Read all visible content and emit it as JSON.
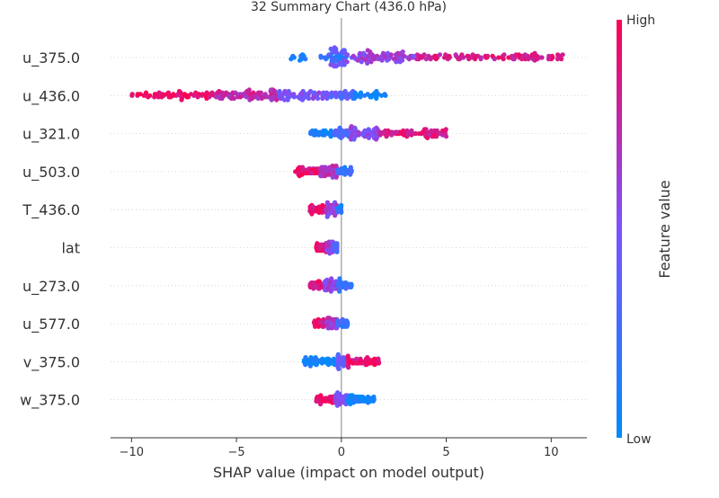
{
  "chart_data": {
    "type": "scatter",
    "subtype": "shap-beeswarm-summary",
    "title": "32 Summary Chart (436.0 hPa)",
    "xlabel": "SHAP value (impact on model output)",
    "ylabel": "",
    "xlim": [
      -11,
      11.7
    ],
    "xticks": [
      -10,
      -5,
      0,
      5,
      10
    ],
    "xtick_labels": [
      "−10",
      "−5",
      "0",
      "5",
      "10"
    ],
    "grid": "dotted horizontal per feature",
    "colorbar": {
      "label": "Feature value",
      "high_label": "High",
      "low_label": "Low",
      "low_color": "#008bfb",
      "mid_color": "#7c52ff",
      "high_color": "#ff0052"
    },
    "features": [
      {
        "name": "u_375.0",
        "min": -2.5,
        "max": 10.6,
        "dist": [
          [
            -2.5,
            -1.6,
            0.1
          ],
          [
            -1.0,
            0.3,
            0.2
          ],
          [
            -0.6,
            0.5,
            0.45
          ],
          [
            0.5,
            3.5,
            0.6
          ],
          [
            3.5,
            10.6,
            0.85
          ]
        ]
      },
      {
        "name": "u_436.0",
        "min": -10.0,
        "max": 2.2,
        "dist": [
          [
            -10.0,
            -6.0,
            0.95
          ],
          [
            -6.0,
            -3.0,
            0.75
          ],
          [
            -3.0,
            -0.5,
            0.5
          ],
          [
            -0.5,
            0.6,
            0.35
          ],
          [
            0.6,
            2.2,
            0.05
          ]
        ]
      },
      {
        "name": "u_321.0",
        "min": -1.5,
        "max": 5.0,
        "dist": [
          [
            -1.5,
            -0.4,
            0.05
          ],
          [
            -0.4,
            0.4,
            0.3
          ],
          [
            0.4,
            1.8,
            0.55
          ],
          [
            1.8,
            5.0,
            0.85
          ]
        ]
      },
      {
        "name": "u_503.0",
        "min": -2.2,
        "max": 0.5,
        "dist": [
          [
            -2.2,
            -1.0,
            0.9
          ],
          [
            -1.0,
            -0.2,
            0.7
          ],
          [
            -0.2,
            0.5,
            0.2
          ]
        ]
      },
      {
        "name": "T_436.0",
        "min": -1.5,
        "max": 0.0,
        "dist": [
          [
            -1.5,
            -0.7,
            0.9
          ],
          [
            -0.7,
            -0.2,
            0.6
          ],
          [
            -0.2,
            0.0,
            0.15
          ]
        ]
      },
      {
        "name": "lat",
        "min": -1.2,
        "max": -0.2,
        "dist": [
          [
            -1.2,
            -0.7,
            0.9
          ],
          [
            -0.7,
            -0.4,
            0.6
          ],
          [
            -0.4,
            -0.2,
            0.3
          ]
        ]
      },
      {
        "name": "u_273.0",
        "min": -1.5,
        "max": 0.5,
        "dist": [
          [
            -1.5,
            -0.8,
            0.85
          ],
          [
            -0.8,
            -0.2,
            0.6
          ],
          [
            -0.2,
            0.5,
            0.2
          ]
        ]
      },
      {
        "name": "u_577.0",
        "min": -1.3,
        "max": 0.3,
        "dist": [
          [
            -1.3,
            -0.7,
            0.9
          ],
          [
            -0.7,
            -0.2,
            0.65
          ],
          [
            -0.2,
            0.3,
            0.2
          ]
        ]
      },
      {
        "name": "v_375.0",
        "min": -1.8,
        "max": 1.8,
        "dist": [
          [
            -1.8,
            -0.2,
            0.05
          ],
          [
            -0.2,
            0.3,
            0.4
          ],
          [
            0.3,
            1.8,
            0.9
          ]
        ]
      },
      {
        "name": "w_375.0",
        "min": -1.2,
        "max": 1.6,
        "dist": [
          [
            -1.2,
            -0.3,
            0.95
          ],
          [
            -0.3,
            0.3,
            0.55
          ],
          [
            0.3,
            1.6,
            0.05
          ]
        ]
      }
    ]
  }
}
